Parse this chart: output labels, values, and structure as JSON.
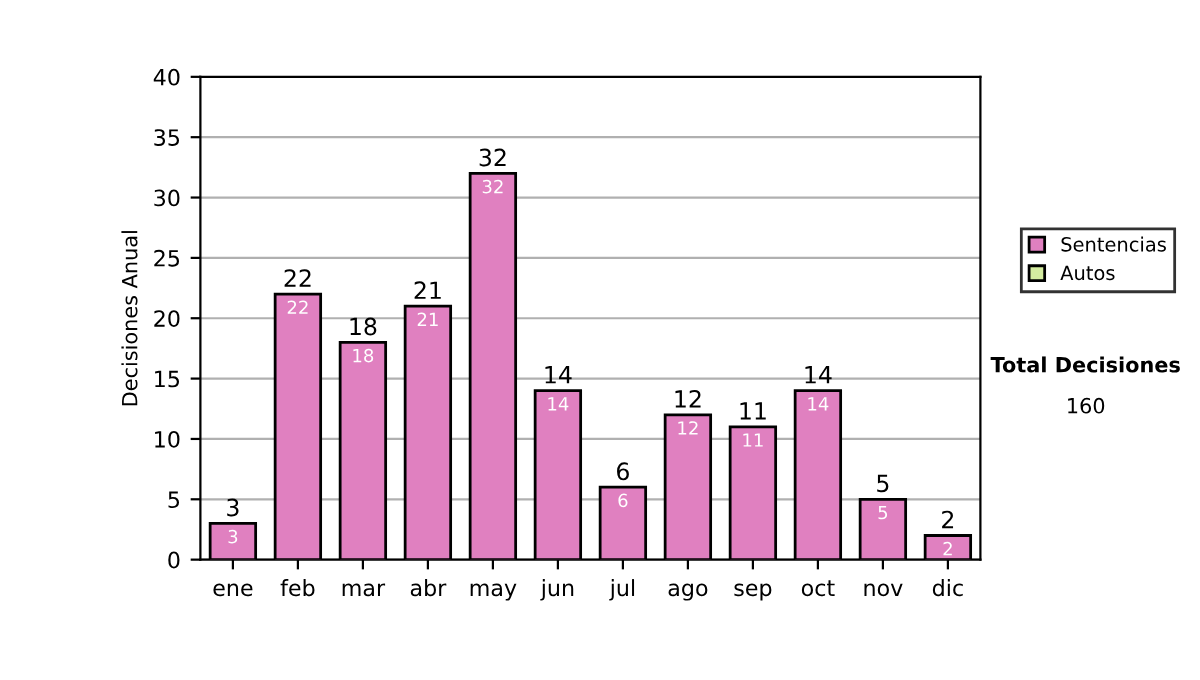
{
  "chart_data": {
    "type": "bar",
    "ylabel": "Decisiones Anual",
    "categories": [
      "ene",
      "feb",
      "mar",
      "abr",
      "may",
      "jun",
      "jul",
      "ago",
      "sep",
      "oct",
      "nov",
      "dic"
    ],
    "series": [
      {
        "name": "Sentencias",
        "color": "#e080c0",
        "values": [
          3,
          22,
          18,
          21,
          32,
          14,
          6,
          12,
          11,
          14,
          5,
          2
        ]
      },
      {
        "name": "Autos",
        "color": "#d4eca0",
        "values": [
          null,
          null,
          null,
          null,
          null,
          null,
          null,
          null,
          null,
          null,
          null,
          null
        ]
      }
    ],
    "stacked": true,
    "data_labels": true,
    "totals": [
      "3",
      "22",
      "18",
      "21",
      "32",
      "14",
      "6",
      "12",
      "11",
      "14",
      "5",
      "2"
    ],
    "ylim": [
      0,
      40
    ],
    "yticks": [
      0,
      5,
      10,
      15,
      20,
      25,
      30,
      35,
      40
    ],
    "grid": "y",
    "legend": "right",
    "annotations": [
      "Total Decisiones",
      "160"
    ]
  }
}
